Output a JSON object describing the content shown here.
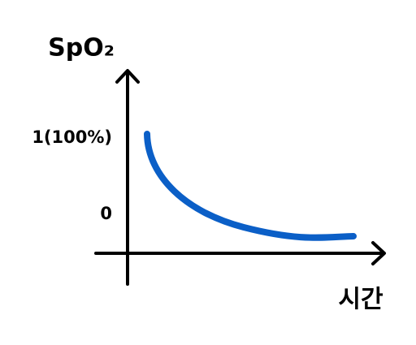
{
  "y_axis_label": "SpO₂",
  "x_axis_label": "시간",
  "y_labels": [
    "1(100%)",
    "0"
  ]
}
